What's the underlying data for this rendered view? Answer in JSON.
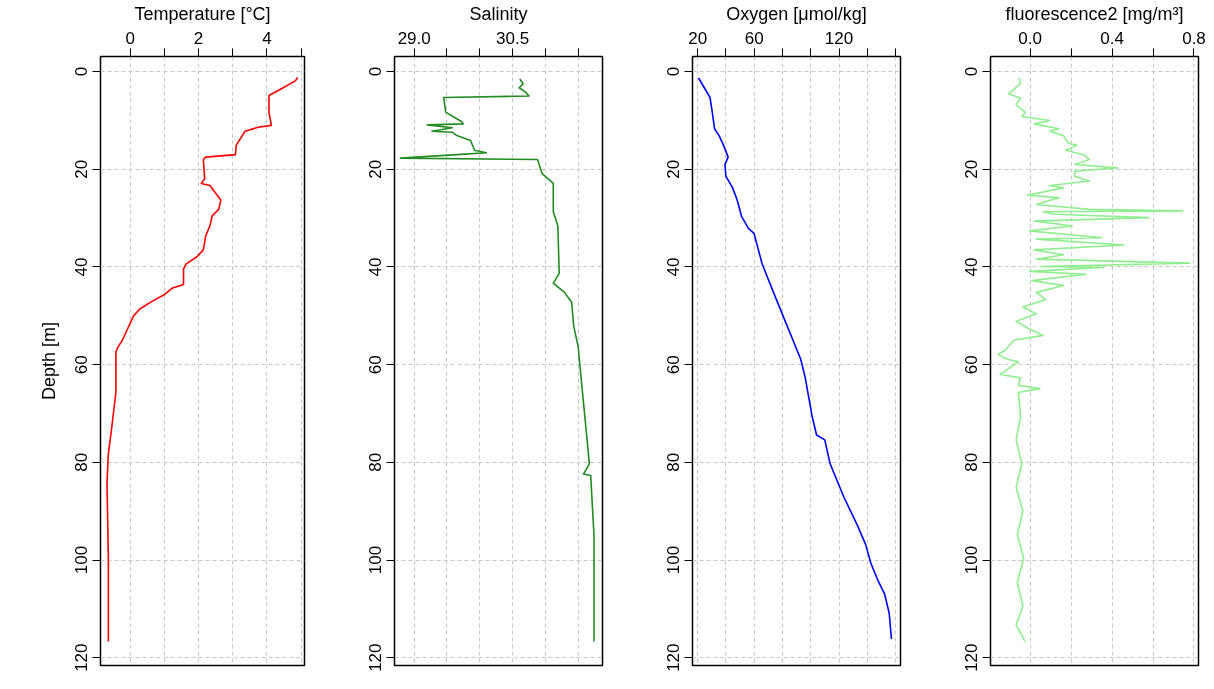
{
  "chart_data": [
    {
      "type": "line",
      "xlabel": "Temperature [°C]",
      "ylabel": "Depth [m]",
      "xlim": [
        -0.87,
        5.1
      ],
      "xticks": [
        0,
        {
          "value": 1,
          "label": null
        },
        2,
        {
          "value": 3,
          "label": null
        },
        4,
        {
          "value": 5,
          "label": null
        }
      ],
      "ylim": [
        121.6,
        -3.1
      ],
      "yticks": [
        0,
        20,
        40,
        60,
        80,
        100,
        120
      ],
      "grid": true,
      "series": [
        {
          "color": "#ff0000",
          "x": [
            4.9,
            4.83,
            4.45,
            4.06,
            4.06,
            4.13,
            3.74,
            3.36,
            3.1,
            3.08,
            2.21,
            2.14,
            2.18,
            2.08,
            2.33,
            2.65,
            2.59,
            2.4,
            2.33,
            2.21,
            2.14,
            1.95,
            1.63,
            1.56,
            1.56,
            1.24,
            0.99,
            0.6,
            0.28,
            0.09,
            -0.1,
            -0.23,
            -0.36,
            -0.42,
            -0.42,
            -0.55,
            -0.64,
            -0.68,
            -0.64,
            -0.64
          ],
          "values": [
            1.2,
            1.9,
            3.4,
            4.9,
            8.3,
            11,
            11.4,
            12.2,
            15.1,
            17,
            17.5,
            18,
            21.9,
            22.9,
            23.3,
            26.3,
            28.2,
            29.5,
            31.6,
            33.6,
            36.5,
            37.9,
            39.4,
            40.4,
            43.6,
            44.3,
            45.7,
            47.2,
            48.6,
            50.1,
            53,
            55,
            56.4,
            57.4,
            65.7,
            73.4,
            78.3,
            84.1,
            99.7,
            116.7
          ]
        }
      ]
    },
    {
      "type": "line",
      "xlabel": "Salinity",
      "xlim": [
        28.7,
        31.87
      ],
      "xticks": [
        {
          "value": 29.0,
          "label": "29.0"
        },
        {
          "value": 29.5,
          "label": null
        },
        {
          "value": 30.0,
          "label": null
        },
        30.5,
        {
          "value": 31.0,
          "label": null
        },
        {
          "value": 31.5,
          "label": null
        }
      ],
      "ylim": [
        121.6,
        -3.1
      ],
      "yticks": [
        0,
        20,
        40,
        60,
        80,
        100,
        120
      ],
      "grid": true,
      "series": [
        {
          "color": "#228b22",
          "x": [
            30.61,
            30.66,
            30.6,
            30.7,
            30.75,
            29.45,
            29.48,
            29.72,
            29.75,
            29.2,
            29.58,
            29.27,
            29.58,
            29.65,
            29.86,
            29.92,
            30.1,
            29.65,
            28.79,
            30.88,
            30.95,
            31.12,
            31.12,
            31.19,
            31.21,
            31.12,
            31.29,
            31.4,
            31.43,
            31.5,
            31.53,
            31.6,
            31.67,
            31.58,
            31.69,
            31.74,
            31.74
          ],
          "values": [
            1.5,
            2.5,
            3.3,
            4.2,
            5,
            5.3,
            8.3,
            10.2,
            10.7,
            10.9,
            11.5,
            12.2,
            12.4,
            13.1,
            14.1,
            16.1,
            16.6,
            17,
            17.7,
            18,
            20.9,
            22.9,
            28.7,
            31.6,
            41.3,
            43.3,
            45.2,
            47.2,
            52,
            56.4,
            60.8,
            70.5,
            80.3,
            82.4,
            82.7,
            94.8,
            116.7
          ]
        }
      ]
    },
    {
      "type": "line",
      "xlabel": "Oxygen [μmol/kg]",
      "xlim": [
        16.3,
        163.5
      ],
      "xticks": [
        20,
        {
          "value": 40,
          "label": null
        },
        60,
        {
          "value": 80,
          "label": null
        },
        {
          "value": 100,
          "label": null
        },
        120,
        {
          "value": 140,
          "label": null
        },
        {
          "value": 160,
          "label": null
        }
      ],
      "ylim": [
        121.6,
        -3.1
      ],
      "yticks": [
        0,
        20,
        40,
        60,
        80,
        100,
        120
      ],
      "grid": true,
      "series": [
        {
          "color": "#0000ff",
          "x": [
            20.6,
            28.7,
            30.3,
            31.9,
            35.1,
            38.3,
            41.5,
            39.3,
            39.9,
            44.7,
            47.9,
            51.1,
            55.9,
            59.8,
            65.6,
            73.6,
            83.2,
            92.9,
            96.1,
            100.9,
            104.1,
            109.9,
            113.7,
            123.4,
            133,
            138.8,
            142.6,
            147.4,
            152.3,
            155.5,
            157.1
          ],
          "values": [
            1.3,
            5.3,
            8.3,
            11.7,
            13.1,
            15.1,
            17.5,
            19,
            21.4,
            23.8,
            26.3,
            29.7,
            32.1,
            33.1,
            39.4,
            45.2,
            52,
            58.9,
            62.7,
            70.5,
            74.4,
            75.4,
            80.3,
            87.1,
            92.9,
            96.8,
            100.7,
            104.1,
            107,
            110.9,
            116.2
          ]
        }
      ]
    },
    {
      "type": "line",
      "xlabel": "fluorescence2 [mg/m³]",
      "xlim": [
        -0.193,
        0.822
      ],
      "xticks": [
        {
          "value": 0,
          "label": "0.0"
        },
        {
          "value": 0.2,
          "label": null
        },
        0.4,
        {
          "value": 0.6,
          "label": null
        },
        0.8
      ],
      "ylim": [
        121.6,
        -3.1
      ],
      "yticks": [
        0,
        20,
        40,
        60,
        80,
        100,
        120
      ],
      "grid": true,
      "series": [
        {
          "color": "#90ee90",
          "x": [
            -0.053,
            -0.046,
            -0.105,
            -0.046,
            -0.068,
            -0.024,
            -0.04,
            0.097,
            0.02,
            0.141,
            0.097,
            0.163,
            0.185,
            0.229,
            0.174,
            0.262,
            0.29,
            0.218,
            0.426,
            0.218,
            0.218,
            0.29,
            0.097,
            0.163,
            -0.013,
            0.141,
            0.031,
            0.29,
            0.745,
            0.064,
            0.119,
            0.58,
            0.02,
            0.207,
            -0.002,
            0.35,
            0.031,
            0.459,
            0.02,
            0.163,
            0.031,
            0.778,
            0.053,
            0.36,
            -0.002,
            0.273,
            0.009,
            0.163,
            0.031,
            0.075,
            -0.035,
            0.031,
            -0.068,
            -0.013,
            0.064,
            -0.079,
            -0.123,
            -0.156,
            -0.112,
            -0.057,
            -0.145,
            -0.046,
            -0.057,
            0.048,
            -0.057,
            -0.046,
            -0.068,
            -0.04,
            -0.068,
            -0.035,
            -0.062,
            -0.031,
            -0.062,
            -0.035,
            -0.068,
            -0.024
          ],
          "values": [
            1.3,
            2.4,
            4.6,
            5.4,
            6.8,
            8.3,
            9.2,
            10,
            10.7,
            11.7,
            12.2,
            13.1,
            14.6,
            15.1,
            16.1,
            17,
            18,
            19,
            19.7,
            20.4,
            21.4,
            22.4,
            23.3,
            23.8,
            25.3,
            25.8,
            27.2,
            28.2,
            28.5,
            28.7,
            29.2,
            29.9,
            30.6,
            31.6,
            32.6,
            34,
            34.3,
            35.5,
            36.5,
            37.5,
            38.4,
            39.2,
            39.9,
            40.1,
            40.9,
            41.5,
            42.8,
            43.8,
            45.2,
            46.7,
            48.2,
            49.6,
            51.1,
            52.5,
            54,
            55,
            57.1,
            57.9,
            58.9,
            59.4,
            62,
            62.7,
            64.2,
            64.9,
            65.7,
            70.5,
            75.4,
            80.3,
            85.1,
            90,
            94.8,
            99.7,
            104.6,
            109.4,
            113.3,
            116.7
          ]
        }
      ]
    }
  ]
}
